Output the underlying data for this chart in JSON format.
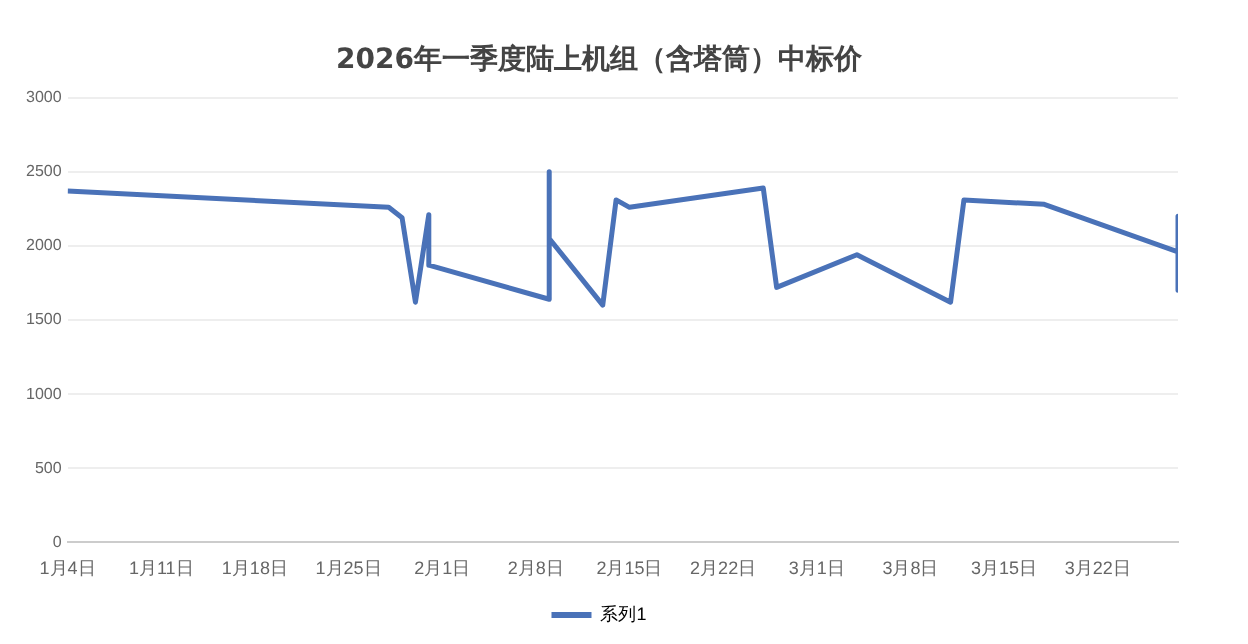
{
  "chart_data": {
    "type": "line",
    "title": "2026年一季度陆上机组（含塔筒）中标价",
    "x": [
      "2026-01-04",
      "2026-01-28",
      "2026-01-29",
      "2026-01-30",
      "2026-01-31",
      "2026-01-31",
      "2026-02-09",
      "2026-02-09",
      "2026-02-09",
      "2026-02-13",
      "2026-02-14",
      "2026-02-15",
      "2026-02-25",
      "2026-02-26",
      "2026-03-04",
      "2026-03-11",
      "2026-03-12",
      "2026-03-18",
      "2026-03-28",
      "2026-03-28",
      "2026-03-28"
    ],
    "series": [
      {
        "name": "系列1",
        "color": "#4a72b8",
        "values": [
          2370,
          2260,
          2190,
          1620,
          2210,
          1870,
          1640,
          2500,
          2050,
          1600,
          2310,
          2260,
          2390,
          1720,
          1940,
          1620,
          2310,
          2280,
          1960,
          2200,
          1700
        ]
      }
    ],
    "xlim": [
      "2026-01-04",
      "2026-03-28"
    ],
    "xticks": [
      {
        "value": "2026-01-04",
        "label": "1月4日"
      },
      {
        "value": "2026-01-11",
        "label": "1月11日"
      },
      {
        "value": "2026-01-18",
        "label": "1月18日"
      },
      {
        "value": "2026-01-25",
        "label": "1月25日"
      },
      {
        "value": "2026-02-01",
        "label": "2月1日"
      },
      {
        "value": "2026-02-08",
        "label": "2月8日"
      },
      {
        "value": "2026-02-15",
        "label": "2月15日"
      },
      {
        "value": "2026-02-22",
        "label": "2月22日"
      },
      {
        "value": "2026-03-01",
        "label": "3月1日"
      },
      {
        "value": "2026-03-08",
        "label": "3月8日"
      },
      {
        "value": "2026-03-15",
        "label": "3月15日"
      },
      {
        "value": "2026-03-22",
        "label": "3月22日"
      }
    ],
    "ylim": [
      0,
      3000
    ],
    "yticks": [
      0,
      500,
      1000,
      1500,
      2000,
      2500,
      3000
    ],
    "grid": "y",
    "legend": "bottom",
    "marker": "none",
    "line_style": "solid"
  }
}
